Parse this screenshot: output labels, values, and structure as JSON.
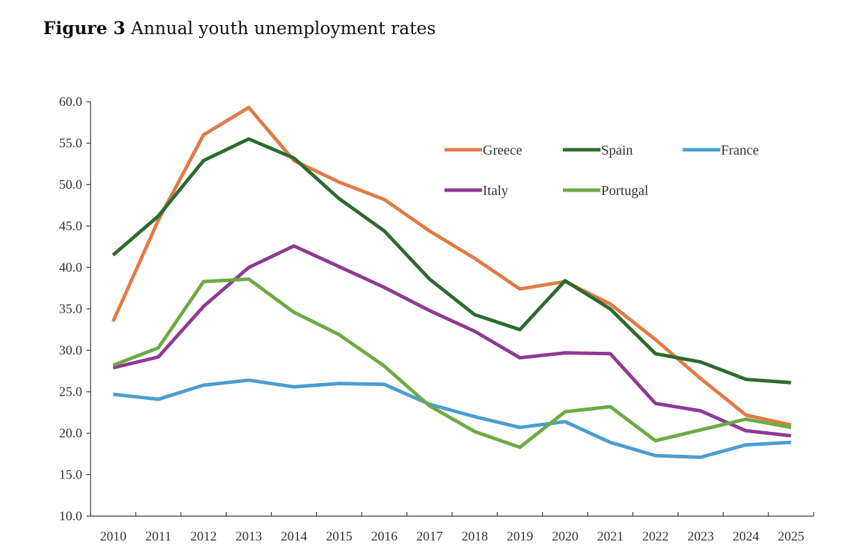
{
  "figure": {
    "label": "Figure 3",
    "caption": "Annual youth unemployment rates"
  },
  "chart_data": {
    "type": "line",
    "title": "",
    "xlabel": "",
    "ylabel": "",
    "x": [
      "2010",
      "2011",
      "2012",
      "2013",
      "2014",
      "2015",
      "2016",
      "2017",
      "2018",
      "2019",
      "2020",
      "2021",
      "2022",
      "2023",
      "2024",
      "2025"
    ],
    "ylim": [
      10.0,
      60.0
    ],
    "yticks": [
      "10.0",
      "15.0",
      "20.0",
      "25.0",
      "30.0",
      "35.0",
      "40.0",
      "45.0",
      "50.0",
      "55.0",
      "60.0"
    ],
    "grid": false,
    "legend_position": "top-right",
    "series": [
      {
        "name": "Greece",
        "color": "#E07B45",
        "values": [
          33.5,
          45.7,
          56.0,
          59.3,
          52.9,
          50.3,
          48.2,
          44.4,
          41.1,
          37.4,
          38.3,
          35.6,
          31.3,
          26.6,
          22.2,
          21.0
        ]
      },
      {
        "name": "Spain",
        "color": "#2E6A2E",
        "values": [
          41.5,
          46.2,
          52.9,
          55.5,
          53.2,
          48.3,
          44.4,
          38.6,
          34.3,
          32.5,
          38.4,
          35.0,
          29.6,
          28.6,
          26.5,
          26.1
        ]
      },
      {
        "name": "France",
        "color": "#4A9DD0",
        "values": [
          24.7,
          24.1,
          25.8,
          26.4,
          25.6,
          26.0,
          25.9,
          23.5,
          22.0,
          20.7,
          21.4,
          18.9,
          17.3,
          17.1,
          18.6,
          18.9
        ]
      },
      {
        "name": "Italy",
        "color": "#8E3A93",
        "values": [
          27.9,
          29.2,
          35.3,
          40.0,
          42.6,
          40.1,
          37.6,
          34.8,
          32.3,
          29.1,
          29.7,
          29.6,
          23.6,
          22.7,
          20.3,
          19.7
        ]
      },
      {
        "name": "Portugal",
        "color": "#6DAA45",
        "values": [
          28.2,
          30.3,
          38.3,
          38.6,
          34.6,
          31.9,
          28.1,
          23.3,
          20.2,
          18.3,
          22.6,
          23.2,
          19.1,
          20.4,
          21.7,
          20.7
        ]
      }
    ]
  }
}
